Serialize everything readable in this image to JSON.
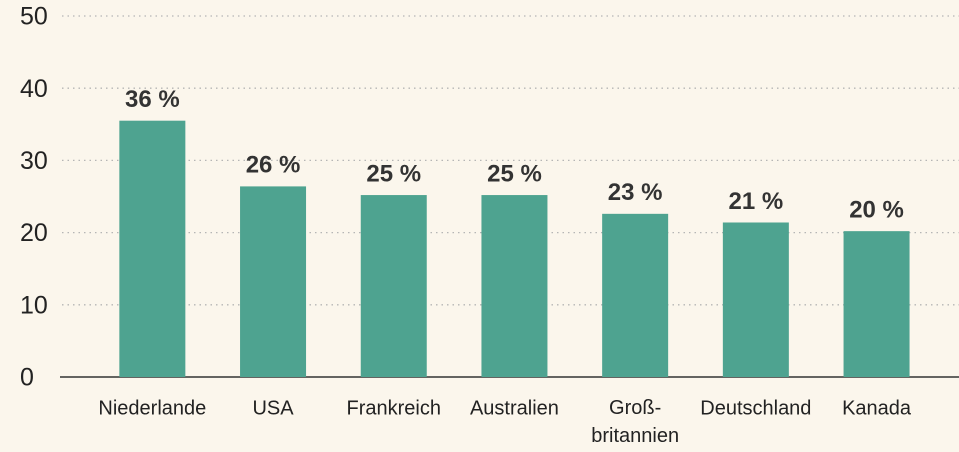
{
  "chart_data": {
    "type": "bar",
    "categories": [
      "Niederlande",
      "USA",
      "Frankreich",
      "Australien",
      "Groß- britannien",
      "Deutschland",
      "Kanada"
    ],
    "values": [
      35.5,
      26.4,
      25.2,
      25.2,
      22.6,
      21.4,
      20.2
    ],
    "value_labels": [
      "36 %",
      "26 %",
      "25 %",
      "25 %",
      "23 %",
      "21 %",
      "20 %"
    ],
    "color": "#4ea390",
    "ylim": [
      0,
      50
    ],
    "yticks": [
      0,
      10,
      20,
      30,
      40,
      50
    ],
    "grid": true
  }
}
